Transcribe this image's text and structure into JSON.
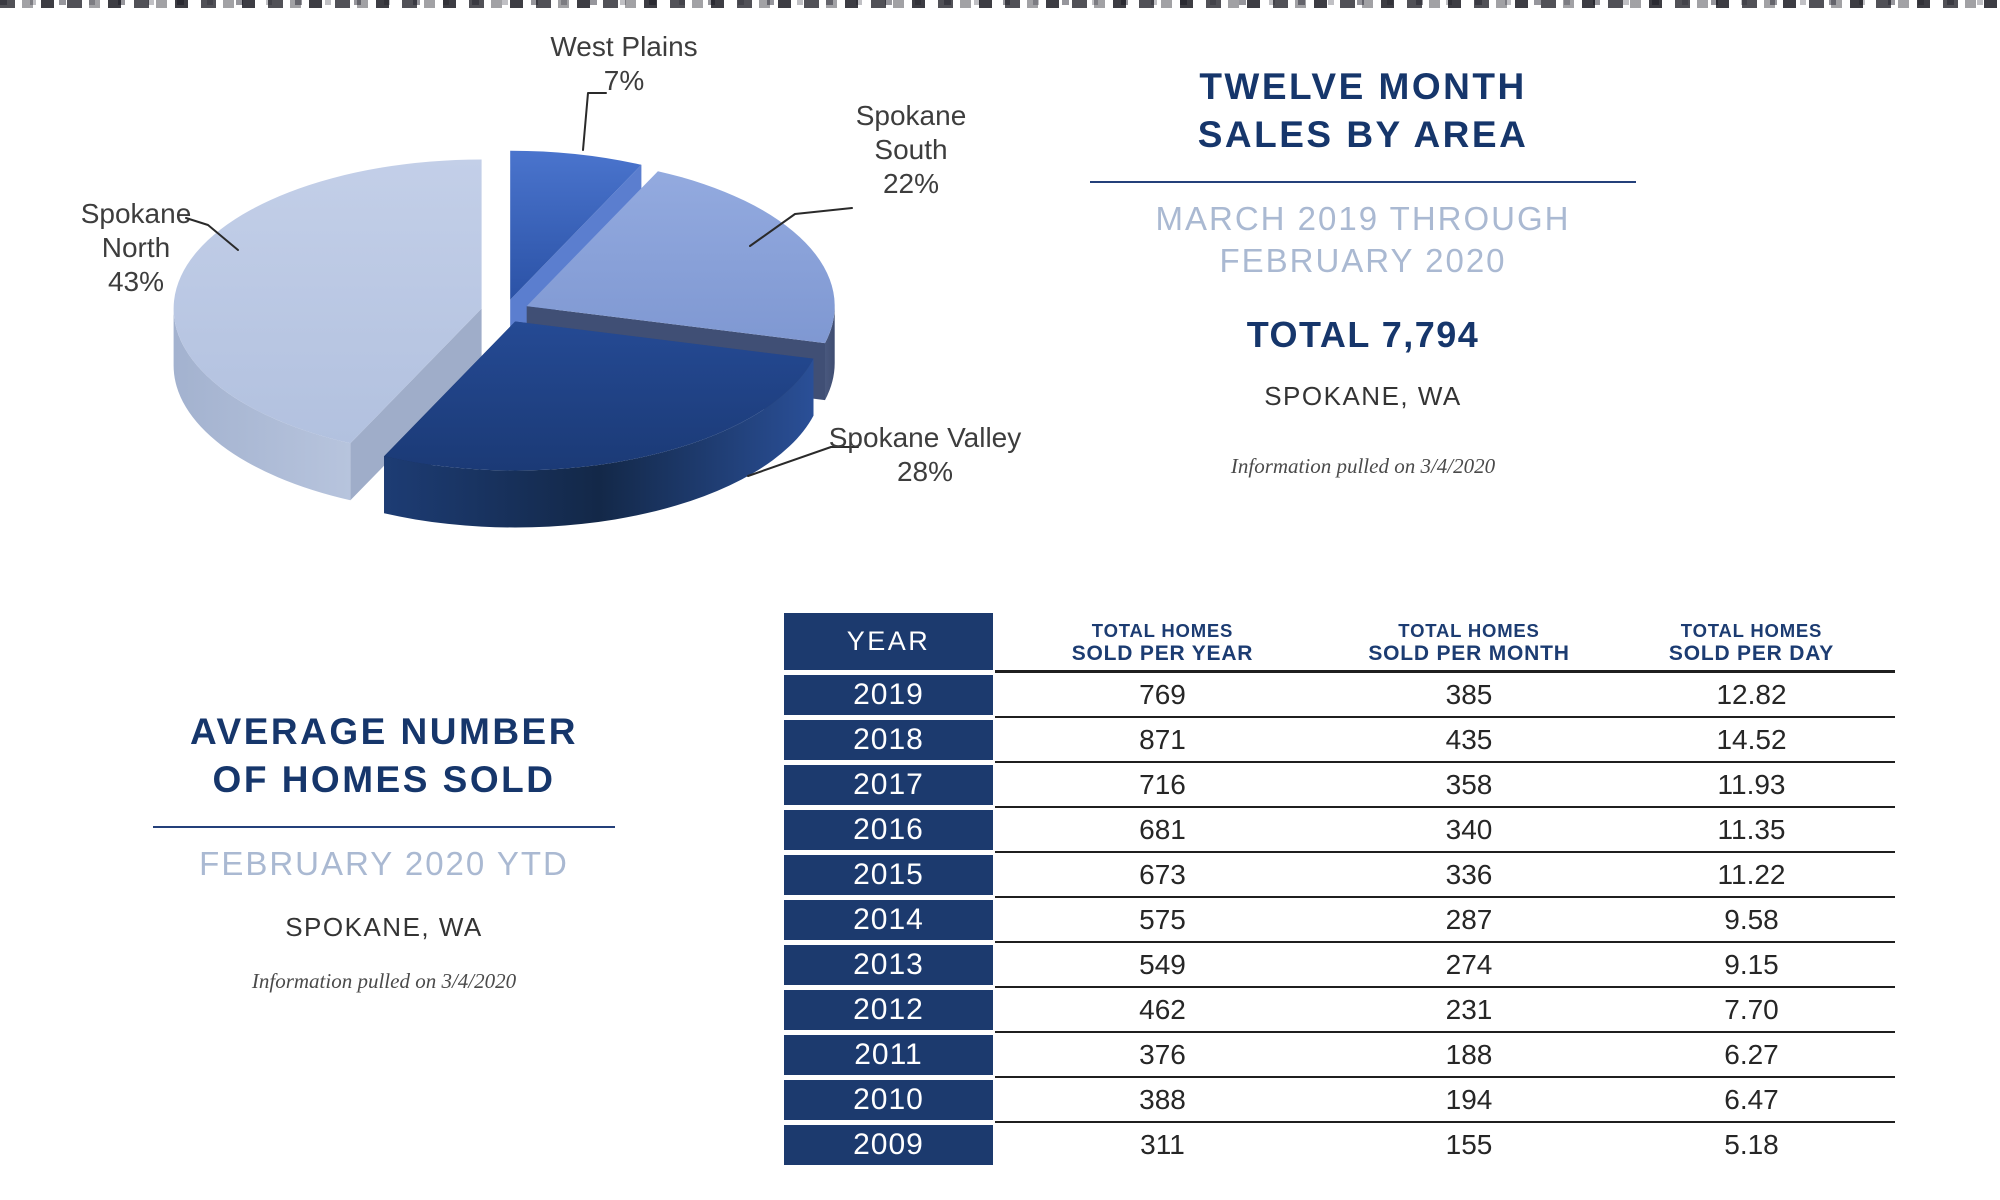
{
  "sales_panel": {
    "title_line1": "TWELVE MONTH",
    "title_line2": "SALES BY AREA",
    "subtitle_line1": "MARCH 2019 THROUGH",
    "subtitle_line2": "FEBRUARY 2020",
    "total": "TOTAL 7,794",
    "location": "SPOKANE, WA",
    "pulled": "Information pulled on 3/4/2020"
  },
  "avg_panel": {
    "title_line1": "AVERAGE NUMBER",
    "title_line2": "OF HOMES SOLD",
    "subtitle": "FEBRUARY 2020 YTD",
    "location": "SPOKANE, WA",
    "pulled": "Information pulled on 3/4/2020"
  },
  "colors": {
    "navy_heading": "#16366b",
    "table_navy": "#1c3a6e",
    "subtitle_light": "#aab9d2",
    "rule_dark": "#1f1f1f",
    "label_text": "#3d3d3d"
  },
  "chart_data": [
    {
      "type": "pie",
      "title": "TWELVE MONTH SALES BY AREA",
      "subtitle": "MARCH 2019 THROUGH FEBRUARY 2020",
      "total_sales": 7794,
      "location": "SPOKANE, WA",
      "start_angle_deg": 0,
      "direction": "clockwise",
      "style": "3d-exploded",
      "slices": [
        {
          "label": "West Plains",
          "value": 7,
          "pct_label": "7%",
          "label_lines": [
            "West Plains"
          ],
          "color_top": [
            "#4a74cd",
            "#2b52a6"
          ],
          "color_rim": [
            "#24498f",
            "#24498f"
          ],
          "cut_start": "#2c51a4",
          "cut_end": "#5b7ecf"
        },
        {
          "label": "Spokane South",
          "value": 22,
          "pct_label": "22%",
          "label_lines": [
            "Spokane",
            "South"
          ],
          "color_top": [
            "#93aadf",
            "#7f98d2"
          ],
          "color_rim": [
            "#49587e",
            "#3f4d71"
          ],
          "cut_start": null,
          "cut_end": "#404f75"
        },
        {
          "label": "Spokane Valley",
          "value": 28,
          "pct_label": "28%",
          "label_lines": [
            "Spokane Valley"
          ],
          "color_top": [
            "#254a94",
            "#1b3a76"
          ],
          "color_rim": [
            "#1d3c74",
            "#132848",
            "#2a4f97"
          ],
          "cut_start": "#39486b",
          "cut_end": "#16294e"
        },
        {
          "label": "Spokane North",
          "value": 43,
          "pct_label": "43%",
          "label_lines": [
            "Spokane",
            "North"
          ],
          "color_top": [
            "#c3cfe8",
            "#b2c1df"
          ],
          "color_rim": [
            "#a3b2cf",
            "#b7c4dd"
          ],
          "cut_start": "#9fadc9",
          "cut_end": "#bac6e0"
        }
      ]
    },
    {
      "type": "table",
      "year_header": "YEAR",
      "col_headers": [
        {
          "line1": "TOTAL HOMES",
          "line2": "SOLD PER YEAR"
        },
        {
          "line1": "TOTAL HOMES",
          "line2": "SOLD PER MONTH"
        },
        {
          "line1": "TOTAL HOMES",
          "line2": "SOLD PER DAY"
        }
      ],
      "rows": [
        {
          "year": "2019",
          "per_year": "769",
          "per_month": "385",
          "per_day": "12.82"
        },
        {
          "year": "2018",
          "per_year": "871",
          "per_month": "435",
          "per_day": "14.52"
        },
        {
          "year": "2017",
          "per_year": "716",
          "per_month": "358",
          "per_day": "11.93"
        },
        {
          "year": "2016",
          "per_year": "681",
          "per_month": "340",
          "per_day": "11.35"
        },
        {
          "year": "2015",
          "per_year": "673",
          "per_month": "336",
          "per_day": "11.22"
        },
        {
          "year": "2014",
          "per_year": "575",
          "per_month": "287",
          "per_day": "9.58"
        },
        {
          "year": "2013",
          "per_year": "549",
          "per_month": "274",
          "per_day": "9.15"
        },
        {
          "year": "2012",
          "per_year": "462",
          "per_month": "231",
          "per_day": "7.70"
        },
        {
          "year": "2011",
          "per_year": "376",
          "per_month": "188",
          "per_day": "6.27"
        },
        {
          "year": "2010",
          "per_year": "388",
          "per_month": "194",
          "per_day": "6.47"
        },
        {
          "year": "2009",
          "per_year": "311",
          "per_month": "155",
          "per_day": "5.18"
        }
      ]
    }
  ]
}
